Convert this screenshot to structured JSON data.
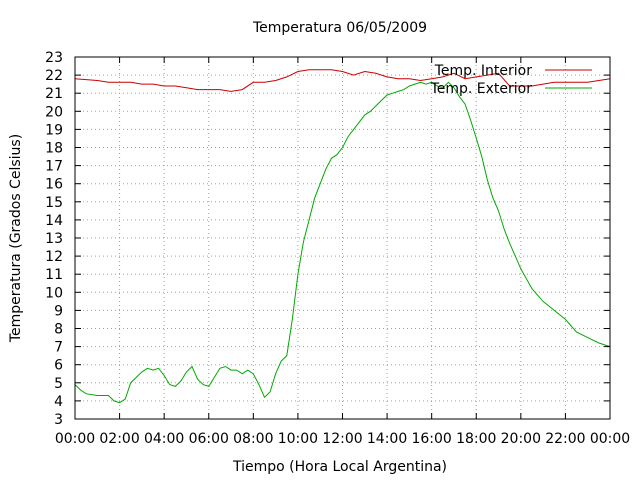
{
  "chart_data": {
    "type": "line",
    "title": "Temperatura 06/05/2009",
    "xlabel": "Tiempo (Hora Local Argentina)",
    "ylabel": "Temperatura (Grados Celsius)",
    "xlim": [
      0,
      24
    ],
    "ylim": [
      3,
      23
    ],
    "x_ticks": [
      "00:00",
      "02:00",
      "04:00",
      "06:00",
      "08:00",
      "10:00",
      "12:00",
      "14:00",
      "16:00",
      "18:00",
      "20:00",
      "22:00",
      "00:00"
    ],
    "y_ticks": [
      "3",
      "4",
      "5",
      "6",
      "7",
      "8",
      "9",
      "10",
      "11",
      "12",
      "13",
      "14",
      "15",
      "16",
      "17",
      "18",
      "19",
      "20",
      "21",
      "22",
      "23"
    ],
    "grid": true,
    "legend_position": "top-right",
    "colors": {
      "interior": "#cc0000",
      "exterior": "#00aa00"
    },
    "series": [
      {
        "name": "Temp. Interior",
        "x": [
          0,
          1,
          1.5,
          2,
          2.5,
          3,
          3.5,
          4,
          4.5,
          5,
          5.5,
          6,
          6.5,
          7,
          7.5,
          8,
          8.5,
          9,
          9.5,
          10,
          10.5,
          11,
          11.5,
          12,
          12.5,
          13,
          13.5,
          14,
          14.5,
          15,
          15.5,
          16,
          16.5,
          17,
          17.5,
          18,
          18.5,
          19,
          19.5,
          20,
          20.5,
          21,
          21.5,
          22,
          22.5,
          23,
          23.5,
          24
        ],
        "y": [
          21.8,
          21.7,
          21.6,
          21.6,
          21.6,
          21.5,
          21.5,
          21.4,
          21.4,
          21.3,
          21.2,
          21.2,
          21.2,
          21.1,
          21.2,
          21.6,
          21.6,
          21.7,
          21.9,
          22.2,
          22.3,
          22.3,
          22.3,
          22.2,
          22.0,
          22.2,
          22.1,
          21.9,
          21.8,
          21.8,
          21.7,
          21.8,
          21.9,
          22.1,
          21.8,
          21.9,
          22.0,
          22.1,
          21.4,
          21.4,
          21.4,
          21.5,
          21.6,
          21.6,
          21.6,
          21.6,
          21.7,
          21.8
        ]
      },
      {
        "name": "Temp. Exterior",
        "x": [
          0,
          0.25,
          0.5,
          1,
          1.5,
          1.75,
          2,
          2.25,
          2.5,
          2.75,
          3,
          3.25,
          3.5,
          3.75,
          4,
          4.25,
          4.5,
          4.75,
          5,
          5.25,
          5.5,
          5.75,
          6,
          6.25,
          6.5,
          6.75,
          7,
          7.25,
          7.5,
          7.75,
          8,
          8.25,
          8.5,
          8.75,
          9,
          9.25,
          9.5,
          9.75,
          10,
          10.25,
          10.5,
          10.75,
          11,
          11.25,
          11.5,
          11.75,
          12,
          12.25,
          12.5,
          12.75,
          13,
          13.25,
          13.5,
          13.75,
          14,
          14.25,
          14.5,
          14.75,
          15,
          15.25,
          15.5,
          15.75,
          16,
          16.25,
          16.5,
          16.75,
          17,
          17.25,
          17.5,
          17.75,
          18,
          18.25,
          18.5,
          18.75,
          19,
          19.25,
          19.5,
          19.75,
          20,
          20.5,
          21,
          21.5,
          22,
          22.5,
          23,
          23.5,
          24
        ],
        "y": [
          4.9,
          4.6,
          4.4,
          4.3,
          4.3,
          4.0,
          3.9,
          4.1,
          5.0,
          5.3,
          5.6,
          5.8,
          5.7,
          5.8,
          5.4,
          4.9,
          4.8,
          5.1,
          5.6,
          5.9,
          5.2,
          4.9,
          4.8,
          5.3,
          5.8,
          5.9,
          5.7,
          5.7,
          5.5,
          5.7,
          5.5,
          4.9,
          4.2,
          4.5,
          5.5,
          6.2,
          6.5,
          8.5,
          11.0,
          12.8,
          14.0,
          15.2,
          16.0,
          16.8,
          17.4,
          17.6,
          18.0,
          18.6,
          19.0,
          19.4,
          19.8,
          20.0,
          20.3,
          20.6,
          20.9,
          21.0,
          21.1,
          21.2,
          21.4,
          21.5,
          21.6,
          21.5,
          21.6,
          21.4,
          21.3,
          21.6,
          21.3,
          20.8,
          20.4,
          19.5,
          18.5,
          17.5,
          16.2,
          15.2,
          14.5,
          13.5,
          12.7,
          12.0,
          11.3,
          10.2,
          9.5,
          9.0,
          8.5,
          7.8,
          7.5,
          7.2,
          7.0
        ]
      }
    ]
  }
}
